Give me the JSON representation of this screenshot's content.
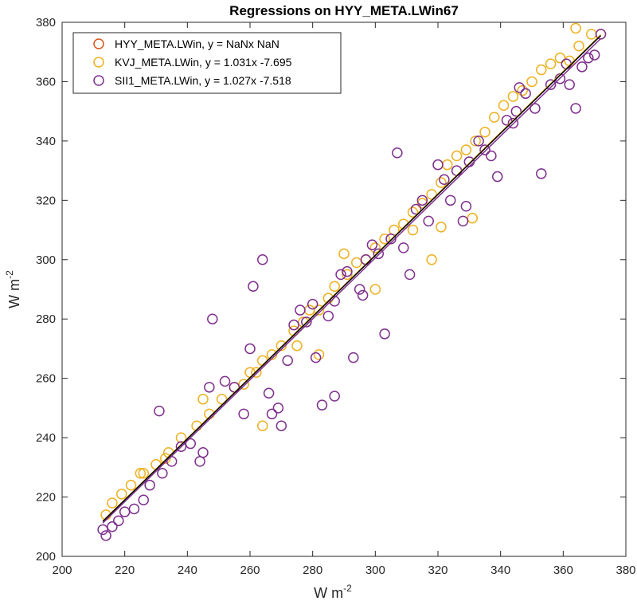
{
  "chart_data": {
    "type": "scatter",
    "title": "Regressions on HYY_META.LWin67",
    "xlabel": "W m",
    "xlabel_sup": "-2",
    "ylabel": "W m",
    "ylabel_sup": "-2",
    "xlim": [
      200,
      380
    ],
    "ylim": [
      200,
      380
    ],
    "xticks": [
      200,
      220,
      240,
      260,
      280,
      300,
      320,
      340,
      360,
      380
    ],
    "yticks": [
      200,
      220,
      240,
      260,
      280,
      300,
      320,
      340,
      360,
      380
    ],
    "grid": false,
    "legend_position": "top-left",
    "series": [
      {
        "name": "HYY_META.LWin, y = NaNx NaN",
        "color": "#d95319",
        "marker": "circle",
        "points": []
      },
      {
        "name": "KVJ_META.LWin, y = 1.031x -7.695",
        "color": "#edb120",
        "marker": "circle",
        "slope": 1.031,
        "intercept": -7.695,
        "points": [
          [
            214,
            214
          ],
          [
            216,
            218
          ],
          [
            219,
            221
          ],
          [
            222,
            224
          ],
          [
            226,
            228
          ],
          [
            230,
            231
          ],
          [
            234,
            235
          ],
          [
            238,
            240
          ],
          [
            243,
            244
          ],
          [
            247,
            248
          ],
          [
            251,
            253
          ],
          [
            255,
            257
          ],
          [
            258,
            258
          ],
          [
            262,
            262
          ],
          [
            264,
            266
          ],
          [
            267,
            268
          ],
          [
            270,
            271
          ],
          [
            274,
            276
          ],
          [
            277,
            279
          ],
          [
            279,
            283
          ],
          [
            282,
            283
          ],
          [
            285,
            287
          ],
          [
            287,
            291
          ],
          [
            291,
            295
          ],
          [
            294,
            299
          ],
          [
            297,
            300
          ],
          [
            300,
            304
          ],
          [
            303,
            307
          ],
          [
            306,
            310
          ],
          [
            309,
            312
          ],
          [
            312,
            316
          ],
          [
            315,
            319
          ],
          [
            318,
            322
          ],
          [
            321,
            326
          ],
          [
            323,
            332
          ],
          [
            326,
            335
          ],
          [
            329,
            337
          ],
          [
            332,
            340
          ],
          [
            335,
            343
          ],
          [
            338,
            348
          ],
          [
            341,
            352
          ],
          [
            344,
            355
          ],
          [
            347,
            357
          ],
          [
            350,
            360
          ],
          [
            353,
            364
          ],
          [
            356,
            366
          ],
          [
            359,
            368
          ],
          [
            362,
            367
          ],
          [
            365,
            372
          ],
          [
            369,
            376
          ],
          [
            372,
            376
          ],
          [
            364,
            378
          ],
          [
            321,
            311
          ],
          [
            331,
            314
          ],
          [
            275,
            271
          ],
          [
            282,
            268
          ],
          [
            264,
            244
          ],
          [
            245,
            253
          ],
          [
            233,
            233
          ],
          [
            312,
            310
          ],
          [
            318,
            300
          ],
          [
            290,
            302
          ],
          [
            300,
            290
          ],
          [
            260,
            262
          ],
          [
            225,
            228
          ]
        ]
      },
      {
        "name": "SII1_META.LWin, y = 1.027x -7.518",
        "color": "#7e2f8e",
        "marker": "circle",
        "slope": 1.027,
        "intercept": -7.518,
        "points": [
          [
            213,
            209
          ],
          [
            214,
            207
          ],
          [
            216,
            210
          ],
          [
            218,
            212
          ],
          [
            220,
            215
          ],
          [
            223,
            216
          ],
          [
            226,
            219
          ],
          [
            228,
            224
          ],
          [
            231,
            249
          ],
          [
            232,
            228
          ],
          [
            235,
            232
          ],
          [
            238,
            237
          ],
          [
            241,
            238
          ],
          [
            244,
            232
          ],
          [
            245,
            235
          ],
          [
            247,
            257
          ],
          [
            248,
            280
          ],
          [
            252,
            259
          ],
          [
            255,
            257
          ],
          [
            258,
            248
          ],
          [
            260,
            270
          ],
          [
            261,
            291
          ],
          [
            264,
            300
          ],
          [
            266,
            255
          ],
          [
            267,
            248
          ],
          [
            269,
            250
          ],
          [
            270,
            244
          ],
          [
            272,
            266
          ],
          [
            274,
            278
          ],
          [
            276,
            283
          ],
          [
            278,
            279
          ],
          [
            280,
            285
          ],
          [
            281,
            267
          ],
          [
            283,
            251
          ],
          [
            285,
            281
          ],
          [
            287,
            254
          ],
          [
            289,
            295
          ],
          [
            291,
            296
          ],
          [
            293,
            267
          ],
          [
            295,
            290
          ],
          [
            297,
            300
          ],
          [
            299,
            305
          ],
          [
            301,
            302
          ],
          [
            303,
            275
          ],
          [
            305,
            307
          ],
          [
            307,
            336
          ],
          [
            309,
            304
          ],
          [
            311,
            295
          ],
          [
            313,
            317
          ],
          [
            315,
            320
          ],
          [
            317,
            313
          ],
          [
            320,
            332
          ],
          [
            322,
            327
          ],
          [
            324,
            320
          ],
          [
            326,
            330
          ],
          [
            328,
            313
          ],
          [
            330,
            333
          ],
          [
            333,
            340
          ],
          [
            335,
            337
          ],
          [
            337,
            335
          ],
          [
            339,
            328
          ],
          [
            342,
            347
          ],
          [
            345,
            350
          ],
          [
            348,
            356
          ],
          [
            351,
            351
          ],
          [
            353,
            329
          ],
          [
            356,
            359
          ],
          [
            359,
            361
          ],
          [
            361,
            366
          ],
          [
            362,
            359
          ],
          [
            364,
            351
          ],
          [
            366,
            365
          ],
          [
            368,
            368
          ],
          [
            370,
            369
          ],
          [
            372,
            376
          ],
          [
            344,
            346
          ],
          [
            346,
            358
          ],
          [
            329,
            318
          ],
          [
            287,
            286
          ],
          [
            296,
            288
          ]
        ]
      }
    ],
    "fit_line": {
      "color": "#000000",
      "slope": 1.03,
      "intercept": -7.6,
      "x": [
        213,
        372
      ]
    }
  }
}
